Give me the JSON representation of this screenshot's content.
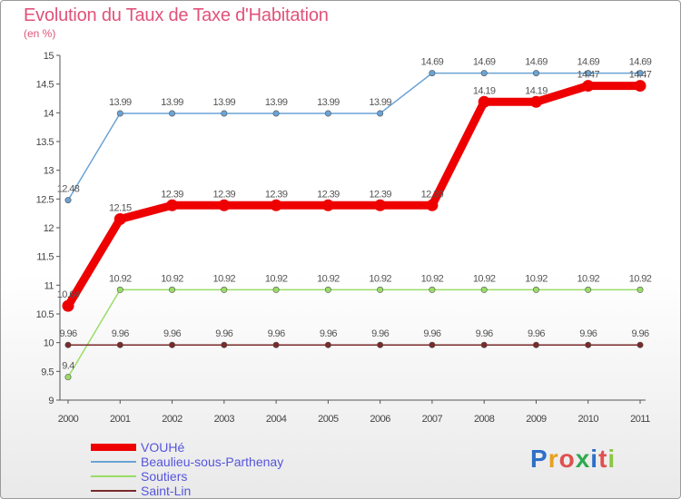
{
  "header": {
    "title": "Evolution du Taux de Taxe d'Habitation",
    "subtitle": "(en %)"
  },
  "logo": {
    "text": "Proxiti",
    "letter_colors": [
      "#2e6fc8",
      "#e8a020",
      "#e05050",
      "#2eaa50",
      "#2e6fc8",
      "#e05050",
      "#8cc63f"
    ]
  },
  "chart_data": {
    "type": "line",
    "title": "Evolution du Taux de Taxe d'Habitation",
    "ylabel": "(en %)",
    "xlabel": "",
    "x": [
      "2000",
      "2001",
      "2002",
      "2003",
      "2004",
      "2005",
      "2006",
      "2007",
      "2008",
      "2009",
      "2010",
      "2011"
    ],
    "ylim": [
      9,
      15
    ],
    "yticks": [
      "9",
      "9.5",
      "10",
      "10.5",
      "11",
      "11.5",
      "12",
      "12.5",
      "13",
      "13.5",
      "14",
      "14.5",
      "15"
    ],
    "grid": false,
    "legend_position": "bottom-left",
    "series": [
      {
        "name": "VOUHé",
        "color": "#ee0000",
        "values": [
          10.64,
          12.15,
          12.39,
          12.39,
          12.39,
          12.39,
          12.39,
          12.39,
          14.19,
          14.19,
          14.47,
          14.47
        ],
        "labels": [
          "10.64",
          "12.15",
          "12.39",
          "12.39",
          "12.39",
          "12.39",
          "12.39",
          "12.39",
          "14.19",
          "14.19",
          "14.47",
          "14.47"
        ],
        "highlight": true
      },
      {
        "name": "Beaulieu-sous-Parthenay",
        "color": "#6aa3d5",
        "values": [
          12.48,
          13.99,
          13.99,
          13.99,
          13.99,
          13.99,
          13.99,
          14.69,
          14.69,
          14.69,
          14.69,
          14.69
        ],
        "labels": [
          "12.48",
          "13.99",
          "13.99",
          "13.99",
          "13.99",
          "13.99",
          "13.99",
          "14.69",
          "14.69",
          "14.69",
          "14.69",
          "14.69"
        ]
      },
      {
        "name": "Soutiers",
        "color": "#99dd66",
        "values": [
          9.4,
          10.92,
          10.92,
          10.92,
          10.92,
          10.92,
          10.92,
          10.92,
          10.92,
          10.92,
          10.92,
          10.92
        ],
        "labels": [
          "9.4",
          "10.92",
          "10.92",
          "10.92",
          "10.92",
          "10.92",
          "10.92",
          "10.92",
          "10.92",
          "10.92",
          "10.92",
          "10.92"
        ]
      },
      {
        "name": "Saint-Lin",
        "color": "#7a2a2a",
        "values": [
          9.96,
          9.96,
          9.96,
          9.96,
          9.96,
          9.96,
          9.96,
          9.96,
          9.96,
          9.96,
          9.96,
          9.96
        ],
        "labels": [
          "9.96",
          "9.96",
          "9.96",
          "9.96",
          "9.96",
          "9.96",
          "9.96",
          "9.96",
          "9.96",
          "9.96",
          "9.96",
          "9.96"
        ]
      }
    ]
  }
}
